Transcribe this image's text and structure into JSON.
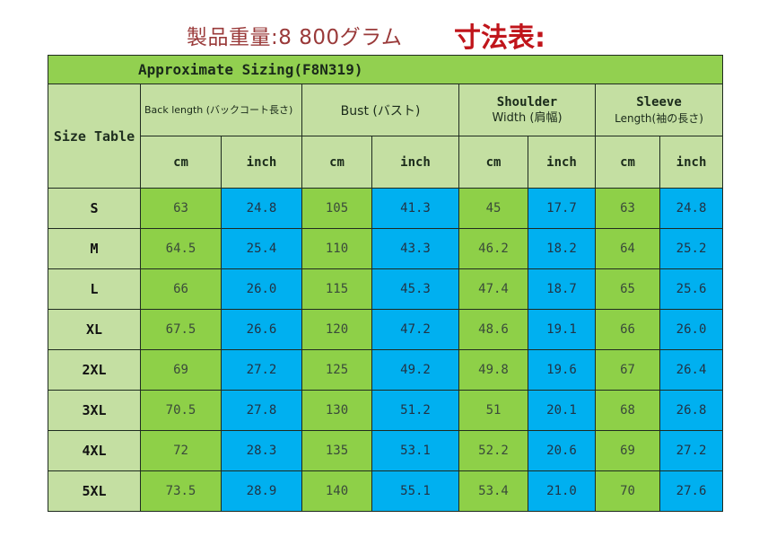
{
  "header": {
    "weight_text": "製品重量:8 800グラム",
    "chart_label": "寸法表:"
  },
  "table": {
    "title": "Approximate Sizing(F8N319)",
    "size_table_label": "Size Table",
    "groups": {
      "back_length": "Back length (バックコート長さ)",
      "bust": "Bust (バスト)",
      "shoulder_main": "Shoulder",
      "shoulder_sub": "Width (肩幅)",
      "sleeve_main": "Sleeve",
      "sleeve_sub": "Length(袖の長さ)"
    },
    "units": {
      "cm": "cm",
      "inch": "inch"
    },
    "rows": [
      {
        "size": "S",
        "back_cm": "63",
        "back_in": "24.8",
        "bust_cm": "105",
        "bust_in": "41.3",
        "sh_cm": "45",
        "sh_in": "17.7",
        "sl_cm": "63",
        "sl_in": "24.8"
      },
      {
        "size": "M",
        "back_cm": "64.5",
        "back_in": "25.4",
        "bust_cm": "110",
        "bust_in": "43.3",
        "sh_cm": "46.2",
        "sh_in": "18.2",
        "sl_cm": "64",
        "sl_in": "25.2"
      },
      {
        "size": "L",
        "back_cm": "66",
        "back_in": "26.0",
        "bust_cm": "115",
        "bust_in": "45.3",
        "sh_cm": "47.4",
        "sh_in": "18.7",
        "sl_cm": "65",
        "sl_in": "25.6"
      },
      {
        "size": "XL",
        "back_cm": "67.5",
        "back_in": "26.6",
        "bust_cm": "120",
        "bust_in": "47.2",
        "sh_cm": "48.6",
        "sh_in": "19.1",
        "sl_cm": "66",
        "sl_in": "26.0"
      },
      {
        "size": "2XL",
        "back_cm": "69",
        "back_in": "27.2",
        "bust_cm": "125",
        "bust_in": "49.2",
        "sh_cm": "49.8",
        "sh_in": "19.6",
        "sl_cm": "67",
        "sl_in": "26.4"
      },
      {
        "size": "3XL",
        "back_cm": "70.5",
        "back_in": "27.8",
        "bust_cm": "130",
        "bust_in": "51.2",
        "sh_cm": "51",
        "sh_in": "20.1",
        "sl_cm": "68",
        "sl_in": "26.8"
      },
      {
        "size": "4XL",
        "back_cm": "72",
        "back_in": "28.3",
        "bust_cm": "135",
        "bust_in": "53.1",
        "sh_cm": "52.2",
        "sh_in": "20.6",
        "sl_cm": "69",
        "sl_in": "27.2"
      },
      {
        "size": "5XL",
        "back_cm": "73.5",
        "back_in": "28.9",
        "bust_cm": "140",
        "bust_in": "55.1",
        "sh_cm": "53.4",
        "sh_in": "21.0",
        "sl_cm": "70",
        "sl_in": "27.6"
      }
    ]
  },
  "colors": {
    "title_green": "#92d050",
    "header_green": "#c4dfa2",
    "cm_green": "#8ed048",
    "inch_blue": "#00b0f0",
    "weight_text": "#9a3a3a",
    "chart_label_red": "#c0151b"
  }
}
